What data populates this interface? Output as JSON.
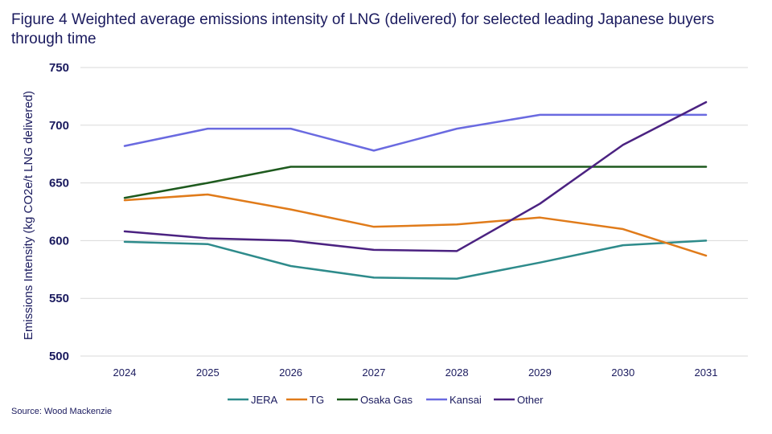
{
  "title": "Figure 4 Weighted average emissions intensity of LNG (delivered)  for selected leading Japanese buyers through time",
  "source": "Source: Wood Mackenzie",
  "chart_data": {
    "type": "line",
    "title": "Figure 4 Weighted average emissions intensity of LNG (delivered)  for selected leading Japanese buyers through time",
    "xlabel": "",
    "ylabel": "Emissions Intensity (kg CO2e/t LNG delivered)",
    "x": [
      "2024",
      "2025",
      "2026",
      "2027",
      "2028",
      "2029",
      "2030",
      "2031"
    ],
    "ylim": [
      500,
      750
    ],
    "yticks": [
      500,
      550,
      600,
      650,
      700,
      750
    ],
    "grid": true,
    "legend_position": "bottom",
    "series": [
      {
        "name": "JERA",
        "color": "#2e8b8b",
        "values": [
          599,
          597,
          578,
          568,
          567,
          581,
          596,
          600
        ]
      },
      {
        "name": "TG",
        "color": "#e07b1a",
        "values": [
          635,
          640,
          627,
          612,
          614,
          620,
          610,
          587
        ]
      },
      {
        "name": "Osaka Gas",
        "color": "#1e5a1e",
        "values": [
          637,
          650,
          664,
          664,
          664,
          664,
          664,
          664
        ]
      },
      {
        "name": "Kansai",
        "color": "#6a6ae0",
        "values": [
          682,
          697,
          697,
          678,
          697,
          709,
          709,
          709
        ]
      },
      {
        "name": "Other",
        "color": "#4b2281",
        "values": [
          608,
          602,
          600,
          592,
          591,
          632,
          683,
          720
        ]
      }
    ]
  }
}
